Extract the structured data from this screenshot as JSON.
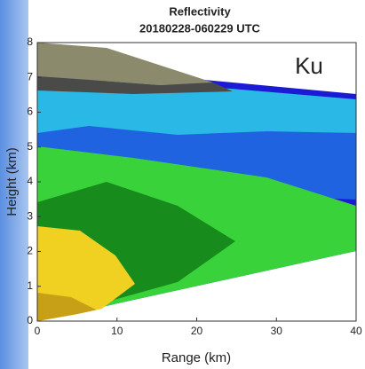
{
  "chart_data": {
    "type": "image",
    "title": "Reflectivity",
    "subtitle": "20180228-060229 UTC",
    "annotation": "Ku",
    "xlabel": "Range (km)",
    "ylabel": "Height (km)",
    "xlim": [
      0,
      40
    ],
    "ylim": [
      0,
      8
    ],
    "xticks": [
      0,
      10,
      20,
      30,
      40
    ],
    "yticks": [
      0,
      1,
      2,
      3,
      4,
      5,
      6,
      7,
      8
    ]
  }
}
